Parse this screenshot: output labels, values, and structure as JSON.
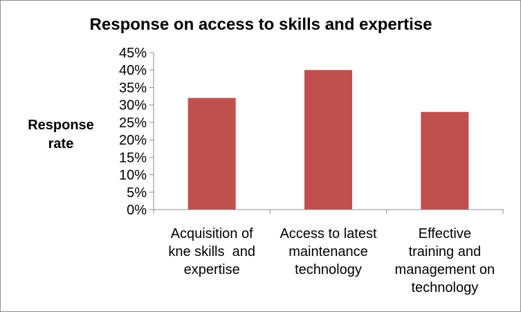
{
  "chart_data": {
    "type": "bar",
    "title": "Response on access to skills and expertise",
    "ylabel": [
      "Response",
      "rate"
    ],
    "xlabel": "",
    "categories": [
      [
        "Acquisition of",
        "kne skills  and",
        "expertise"
      ],
      [
        "Access to latest",
        "maintenance",
        "technology"
      ],
      [
        "Effective",
        "training and",
        "management on",
        "technology"
      ]
    ],
    "values": [
      0.32,
      0.4,
      0.28
    ],
    "ylim": [
      0,
      0.45
    ],
    "yticks": [
      {
        "value": 0,
        "label": "0%"
      },
      {
        "value": 0.05,
        "label": "5%"
      },
      {
        "value": 0.1,
        "label": "10%"
      },
      {
        "value": 0.15,
        "label": "15%"
      },
      {
        "value": 0.2,
        "label": "20%"
      },
      {
        "value": 0.25,
        "label": "25%"
      },
      {
        "value": 0.3,
        "label": "30%"
      },
      {
        "value": 0.35,
        "label": "35%"
      },
      {
        "value": 0.4,
        "label": "40%"
      },
      {
        "value": 0.45,
        "label": "45%"
      }
    ],
    "bar_color": "#c0504d",
    "grid": false,
    "legend": "none"
  }
}
